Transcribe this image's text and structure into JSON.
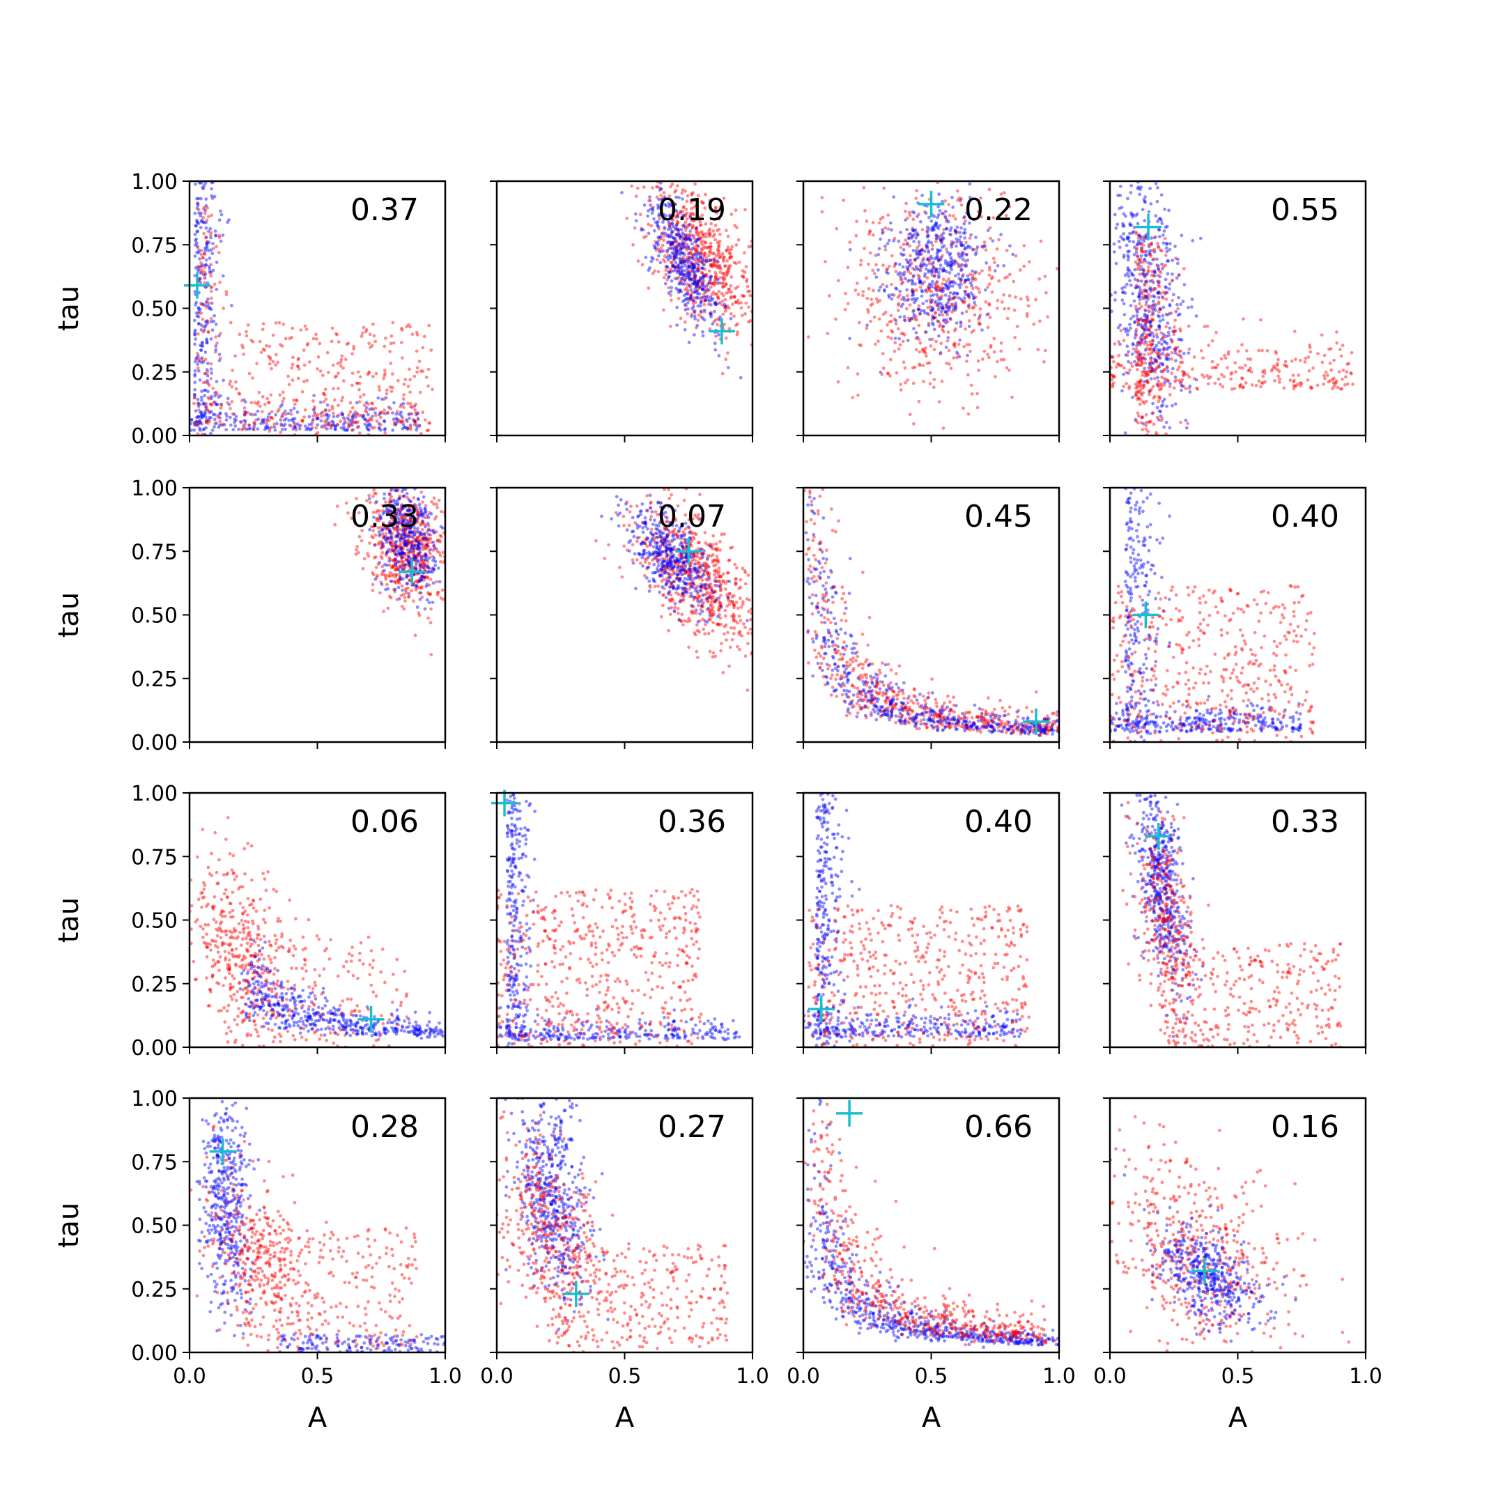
{
  "colors": {
    "series_a": "#ff0000",
    "series_b": "#0000ff",
    "marker": "#17becf",
    "frame": "#000000"
  },
  "chart_data": {
    "type": "scatter",
    "rows": 4,
    "cols": 4,
    "xlabel": "A",
    "ylabel": "tau",
    "xlim": [
      0,
      1
    ],
    "ylim": [
      0,
      1
    ],
    "xticks": [
      "0.0",
      "0.5",
      "1.0"
    ],
    "yticks": [
      "0.00",
      "0.25",
      "0.50",
      "0.75",
      "1.00"
    ],
    "point_opacity": 0.45,
    "shared_axes": true,
    "panels": [
      {
        "annotation": "0.37",
        "marker": [
          0.03,
          0.59
        ],
        "clusters": [
          {
            "series": 1,
            "shape": "L",
            "n": 520,
            "cx": 0.02,
            "cy": 0.02,
            "sx": 0.05,
            "sy": 0.05,
            "ex": 0.9,
            "ey": 1.0
          },
          {
            "series": 0,
            "shape": "box",
            "n": 300,
            "cx": 0.55,
            "cy": 0.22,
            "sx": 0.25,
            "sy": 0.14
          },
          {
            "series": 0,
            "shape": "L",
            "n": 200,
            "cx": 0.03,
            "cy": 0.03,
            "sx": 0.06,
            "sy": 0.06,
            "ex": 0.9,
            "ey": 0.95
          }
        ]
      },
      {
        "annotation": "0.19",
        "marker": [
          0.88,
          0.41
        ],
        "clusters": [
          {
            "series": 0,
            "shape": "gauss",
            "n": 650,
            "cx": 0.8,
            "cy": 0.7,
            "sx": 0.1,
            "sy": 0.15,
            "rho": -0.5
          },
          {
            "series": 1,
            "shape": "gauss",
            "n": 420,
            "cx": 0.73,
            "cy": 0.68,
            "sx": 0.07,
            "sy": 0.14,
            "rho": -0.7
          }
        ]
      },
      {
        "annotation": "0.22",
        "marker": [
          0.5,
          0.91
        ],
        "clusters": [
          {
            "series": 0,
            "shape": "gauss",
            "n": 560,
            "cx": 0.52,
            "cy": 0.55,
            "sx": 0.2,
            "sy": 0.22,
            "rho": 0.0
          },
          {
            "series": 1,
            "shape": "gauss",
            "n": 480,
            "cx": 0.52,
            "cy": 0.65,
            "sx": 0.1,
            "sy": 0.14,
            "rho": 0.0
          }
        ]
      },
      {
        "annotation": "0.55",
        "marker": [
          0.15,
          0.82
        ],
        "clusters": [
          {
            "series": 1,
            "shape": "gauss",
            "n": 520,
            "cx": 0.15,
            "cy": 0.55,
            "sx": 0.07,
            "sy": 0.25,
            "rho": -0.3
          },
          {
            "series": 0,
            "shape": "L",
            "n": 550,
            "cx": 0.1,
            "cy": 0.18,
            "sx": 0.08,
            "sy": 0.1,
            "ex": 0.95,
            "ey": 0.8
          }
        ]
      },
      {
        "annotation": "0.33",
        "marker": [
          0.87,
          0.67
        ],
        "clusters": [
          {
            "series": 0,
            "shape": "gauss",
            "n": 600,
            "cx": 0.85,
            "cy": 0.77,
            "sx": 0.08,
            "sy": 0.12,
            "rho": -0.3
          },
          {
            "series": 1,
            "shape": "gauss",
            "n": 380,
            "cx": 0.85,
            "cy": 0.8,
            "sx": 0.06,
            "sy": 0.11,
            "rho": -0.3
          }
        ]
      },
      {
        "annotation": "0.07",
        "marker": [
          0.75,
          0.75
        ],
        "clusters": [
          {
            "series": 0,
            "shape": "gauss",
            "n": 650,
            "cx": 0.78,
            "cy": 0.65,
            "sx": 0.12,
            "sy": 0.14,
            "rho": -0.55
          },
          {
            "series": 1,
            "shape": "gauss",
            "n": 420,
            "cx": 0.68,
            "cy": 0.72,
            "sx": 0.08,
            "sy": 0.1,
            "rho": -0.55
          }
        ]
      },
      {
        "annotation": "0.45",
        "marker": [
          0.91,
          0.08
        ],
        "clusters": [
          {
            "series": 0,
            "shape": "curve",
            "n": 600,
            "k": 0.055,
            "spread": 0.35,
            "xmin": 0.03,
            "xmax": 1.0
          },
          {
            "series": 1,
            "shape": "curve",
            "n": 480,
            "k": 0.05,
            "spread": 0.28,
            "xmin": 0.03,
            "xmax": 1.0
          }
        ]
      },
      {
        "annotation": "0.40",
        "marker": [
          0.14,
          0.5
        ],
        "clusters": [
          {
            "series": 1,
            "shape": "L",
            "n": 520,
            "cx": 0.06,
            "cy": 0.04,
            "sx": 0.06,
            "sy": 0.05,
            "ex": 0.75,
            "ey": 1.0
          },
          {
            "series": 0,
            "shape": "box",
            "n": 450,
            "cx": 0.4,
            "cy": 0.3,
            "sx": 0.25,
            "sy": 0.2
          }
        ]
      },
      {
        "annotation": "0.06",
        "marker": [
          0.71,
          0.11
        ],
        "clusters": [
          {
            "series": 0,
            "shape": "gauss",
            "n": 380,
            "cx": 0.18,
            "cy": 0.4,
            "sx": 0.1,
            "sy": 0.2,
            "rho": -0.3
          },
          {
            "series": 0,
            "shape": "box",
            "n": 220,
            "cx": 0.5,
            "cy": 0.2,
            "sx": 0.22,
            "sy": 0.15
          },
          {
            "series": 1,
            "shape": "curve",
            "n": 450,
            "k": 0.06,
            "spread": 0.32,
            "xmin": 0.25,
            "xmax": 1.0
          }
        ]
      },
      {
        "annotation": "0.36",
        "marker": [
          0.03,
          0.96
        ],
        "clusters": [
          {
            "series": 1,
            "shape": "L",
            "n": 520,
            "cx": 0.04,
            "cy": 0.03,
            "sx": 0.04,
            "sy": 0.04,
            "ex": 0.95,
            "ey": 1.0
          },
          {
            "series": 0,
            "shape": "box",
            "n": 520,
            "cx": 0.4,
            "cy": 0.3,
            "sx": 0.25,
            "sy": 0.2
          }
        ]
      },
      {
        "annotation": "0.40",
        "marker": [
          0.07,
          0.15
        ],
        "clusters": [
          {
            "series": 1,
            "shape": "L",
            "n": 540,
            "cx": 0.05,
            "cy": 0.04,
            "sx": 0.05,
            "sy": 0.05,
            "ex": 0.85,
            "ey": 1.0
          },
          {
            "series": 0,
            "shape": "box",
            "n": 480,
            "cx": 0.45,
            "cy": 0.27,
            "sx": 0.27,
            "sy": 0.18
          }
        ]
      },
      {
        "annotation": "0.33",
        "marker": [
          0.19,
          0.83
        ],
        "clusters": [
          {
            "series": 1,
            "shape": "gauss",
            "n": 520,
            "cx": 0.2,
            "cy": 0.65,
            "sx": 0.05,
            "sy": 0.2,
            "rho": -0.5
          },
          {
            "series": 0,
            "shape": "gauss",
            "n": 300,
            "cx": 0.22,
            "cy": 0.5,
            "sx": 0.06,
            "sy": 0.2,
            "rho": -0.4
          },
          {
            "series": 0,
            "shape": "box",
            "n": 300,
            "cx": 0.55,
            "cy": 0.2,
            "sx": 0.22,
            "sy": 0.13
          }
        ]
      },
      {
        "annotation": "0.28",
        "marker": [
          0.13,
          0.79
        ],
        "clusters": [
          {
            "series": 1,
            "shape": "gauss",
            "n": 450,
            "cx": 0.14,
            "cy": 0.6,
            "sx": 0.05,
            "sy": 0.22,
            "rho": -0.2
          },
          {
            "series": 1,
            "shape": "band",
            "n": 150,
            "xmin": 0.35,
            "xmax": 1.0,
            "ymin": 0.0,
            "ymax": 0.07
          },
          {
            "series": 0,
            "shape": "gauss",
            "n": 300,
            "cx": 0.25,
            "cy": 0.4,
            "sx": 0.1,
            "sy": 0.15,
            "rho": -0.3
          },
          {
            "series": 0,
            "shape": "box",
            "n": 250,
            "cx": 0.55,
            "cy": 0.25,
            "sx": 0.22,
            "sy": 0.15
          }
        ]
      },
      {
        "annotation": "0.27",
        "marker": [
          0.31,
          0.23
        ],
        "clusters": [
          {
            "series": 1,
            "shape": "gauss",
            "n": 520,
            "cx": 0.22,
            "cy": 0.6,
            "sx": 0.07,
            "sy": 0.2,
            "rho": -0.4
          },
          {
            "series": 0,
            "shape": "gauss",
            "n": 350,
            "cx": 0.2,
            "cy": 0.5,
            "sx": 0.1,
            "sy": 0.18,
            "rho": -0.3
          },
          {
            "series": 0,
            "shape": "box",
            "n": 300,
            "cx": 0.55,
            "cy": 0.22,
            "sx": 0.22,
            "sy": 0.13
          }
        ]
      },
      {
        "annotation": "0.66",
        "marker": [
          0.18,
          0.94
        ],
        "clusters": [
          {
            "series": 1,
            "shape": "curve",
            "n": 620,
            "k": 0.045,
            "spread": 0.3,
            "xmin": 0.05,
            "xmax": 1.0
          },
          {
            "series": 0,
            "shape": "curve",
            "n": 520,
            "k": 0.07,
            "spread": 0.35,
            "xmin": 0.05,
            "xmax": 0.95
          }
        ]
      },
      {
        "annotation": "0.16",
        "marker": [
          0.37,
          0.32
        ],
        "clusters": [
          {
            "series": 0,
            "shape": "gauss",
            "n": 520,
            "cx": 0.35,
            "cy": 0.38,
            "sx": 0.18,
            "sy": 0.22,
            "rho": -0.4
          },
          {
            "series": 1,
            "shape": "gauss",
            "n": 420,
            "cx": 0.38,
            "cy": 0.3,
            "sx": 0.1,
            "sy": 0.1,
            "rho": -0.5
          }
        ]
      }
    ]
  }
}
